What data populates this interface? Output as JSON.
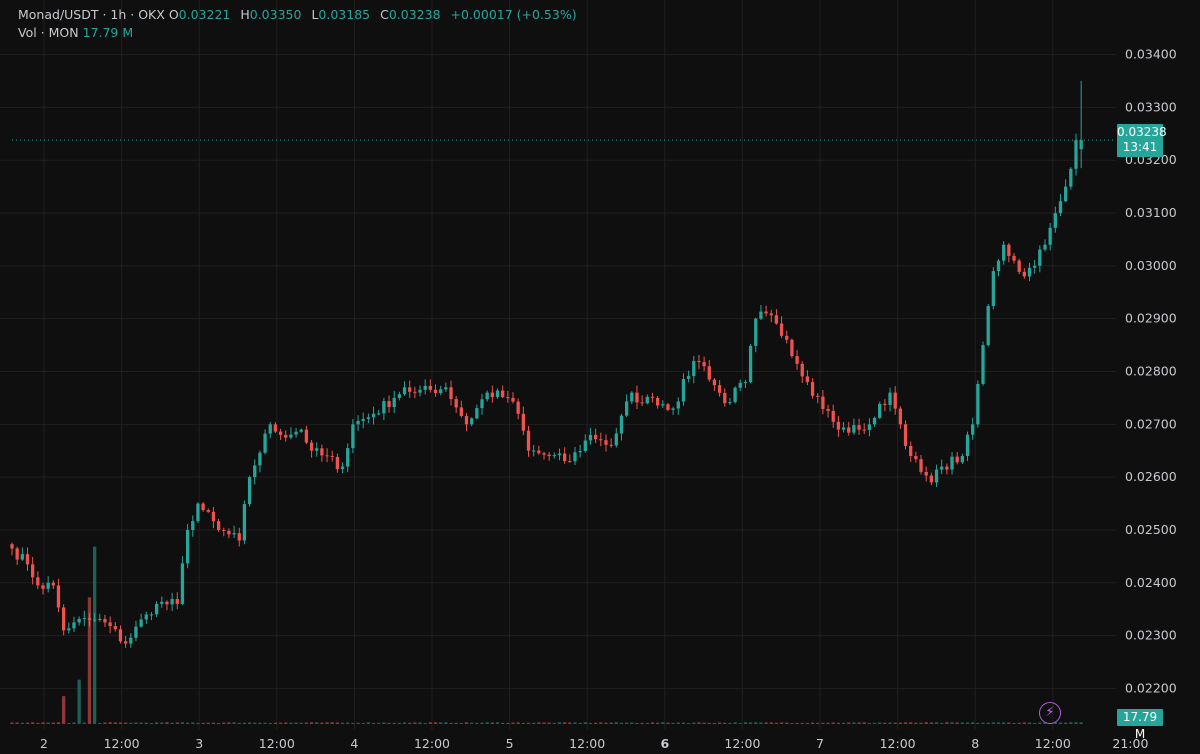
{
  "header": {
    "symbol": "Monad/USDT · 1h · OKX",
    "open_label": "O",
    "open": "0.03221",
    "high_label": "H",
    "high": "0.03350",
    "low_label": "L",
    "low": "0.03185",
    "close_label": "C",
    "close": "0.03238",
    "change": "+0.00017 (+0.53%)",
    "vol_label": "Vol · MON",
    "vol_value": "17.79 M"
  },
  "last_price": {
    "price": "0.03238",
    "countdown": "13:41"
  },
  "last_volume": "17.79 M",
  "colors": {
    "up": "#26a69a",
    "down": "#ef5350",
    "background": "#0f0f0f",
    "grid": "#1f1f1f",
    "text": "#d1d4dc",
    "accent": "#b05cd6"
  },
  "chart_data": {
    "type": "candlestick",
    "interval": "1h",
    "grid": true,
    "ylim": [
      0.0218,
      0.0342
    ],
    "y_ticks": [
      "0.02200",
      "0.02300",
      "0.02400",
      "0.02500",
      "0.02600",
      "0.02700",
      "0.02800",
      "0.02900",
      "0.03000",
      "0.03100",
      "0.03200",
      "0.03300",
      "0.03400"
    ],
    "x_ticks": [
      "2",
      "12:00",
      "3",
      "12:00",
      "4",
      "12:00",
      "5",
      "12:00",
      "6",
      "12:00",
      "7",
      "12:00",
      "8",
      "12:00",
      "21:00"
    ],
    "x_tick_bold": [
      false,
      false,
      false,
      false,
      false,
      false,
      false,
      false,
      true,
      false,
      false,
      false,
      false,
      false,
      false
    ],
    "waypoints_hour": [
      0,
      3,
      5,
      8,
      10,
      12,
      16,
      18,
      22,
      26,
      28,
      32,
      34,
      36,
      40,
      44,
      46,
      50,
      52,
      56,
      58,
      64,
      66,
      70,
      74,
      76,
      78,
      84,
      88,
      92,
      96,
      98,
      100,
      104,
      108,
      112,
      114,
      116,
      120,
      122,
      124,
      128,
      132,
      134,
      138,
      142,
      144,
      146,
      150,
      154,
      160,
      164,
      166,
      170,
      172,
      174,
      176,
      178,
      180,
      184,
      186,
      188,
      190,
      192,
      194,
      196,
      200,
      204,
      206
    ],
    "waypoints_close": [
      0.02465,
      0.02435,
      0.02395,
      0.02395,
      0.0231,
      0.02325,
      0.0233,
      0.02325,
      0.02285,
      0.0234,
      0.0236,
      0.0236,
      0.025,
      0.0255,
      0.025,
      0.0248,
      0.026,
      0.027,
      0.0268,
      0.0269,
      0.0265,
      0.0262,
      0.027,
      0.0272,
      0.0275,
      0.0277,
      0.0276,
      0.0277,
      0.027,
      0.0276,
      0.0275,
      0.0272,
      0.0265,
      0.0264,
      0.0263,
      0.0268,
      0.0267,
      0.0266,
      0.0276,
      0.0274,
      0.0275,
      0.0273,
      0.0282,
      0.0281,
      0.0274,
      0.0278,
      0.029,
      0.0291,
      0.0286,
      0.0278,
      0.0269,
      0.0269,
      0.027,
      0.0276,
      0.027,
      0.0264,
      0.0261,
      0.0259,
      0.0262,
      0.0264,
      0.027,
      0.0285,
      0.0299,
      0.0304,
      0.0301,
      0.0298,
      0.0304,
      0.0315,
      0.03238
    ],
    "volume_unit": "M",
    "volume_ylim": [
      0,
      150
    ],
    "volume_spikes_hour": [
      10,
      13,
      15,
      16
    ],
    "volume_spikes_value": [
      22,
      35,
      100,
      140
    ]
  }
}
